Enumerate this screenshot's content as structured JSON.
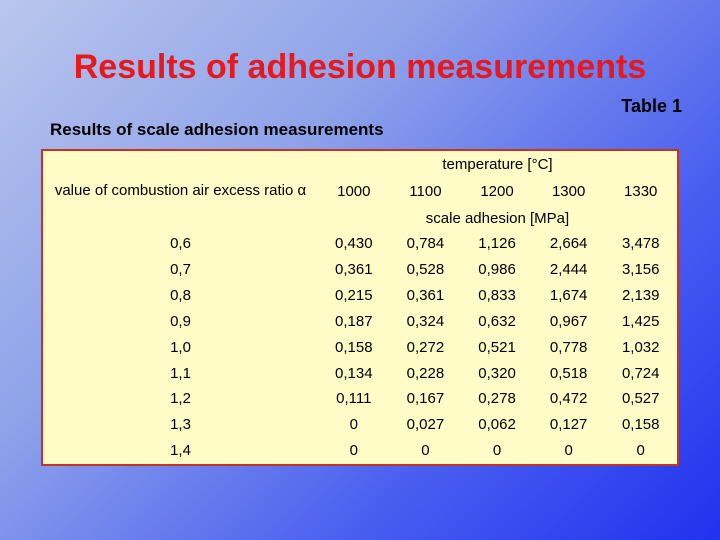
{
  "slide": {
    "title": "Results of adhesion measurements",
    "table_number": "Table 1",
    "subtitle": "Results of scale adhesion measurements"
  },
  "table": {
    "row_header": "value of combustion air excess ratio α",
    "temperature_header": "temperature [°C]",
    "temperatures": [
      "1000",
      "1100",
      "1200",
      "1300",
      "1330"
    ],
    "unit_header": "scale adhesion [MPa]",
    "rows": [
      {
        "alpha": "0,6",
        "values": [
          "0,430",
          "0,784",
          "1,126",
          "2,664",
          "3,478"
        ]
      },
      {
        "alpha": "0,7",
        "values": [
          "0,361",
          "0,528",
          "0,986",
          "2,444",
          "3,156"
        ]
      },
      {
        "alpha": "0,8",
        "values": [
          "0,215",
          "0,361",
          "0,833",
          "1,674",
          "2,139"
        ]
      },
      {
        "alpha": "0,9",
        "values": [
          "0,187",
          "0,324",
          "0,632",
          "0,967",
          "1,425"
        ]
      },
      {
        "alpha": "1,0",
        "values": [
          "0,158",
          "0,272",
          "0,521",
          "0,778",
          "1,032"
        ]
      },
      {
        "alpha": "1,1",
        "values": [
          "0,134",
          "0,228",
          "0,320",
          "0,518",
          "0,724"
        ]
      },
      {
        "alpha": "1,2",
        "values": [
          "0,111",
          "0,167",
          "0,278",
          "0,472",
          "0,527"
        ]
      },
      {
        "alpha": "1,3",
        "values": [
          "0",
          "0,027",
          "0,062",
          "0,127",
          "0,158"
        ]
      },
      {
        "alpha": "1,4",
        "values": [
          "0",
          "0",
          "0",
          "0",
          "0"
        ]
      }
    ]
  },
  "colors": {
    "title": "#e5191f",
    "table_background": "#fffcc8",
    "table_border": "#c53323"
  }
}
